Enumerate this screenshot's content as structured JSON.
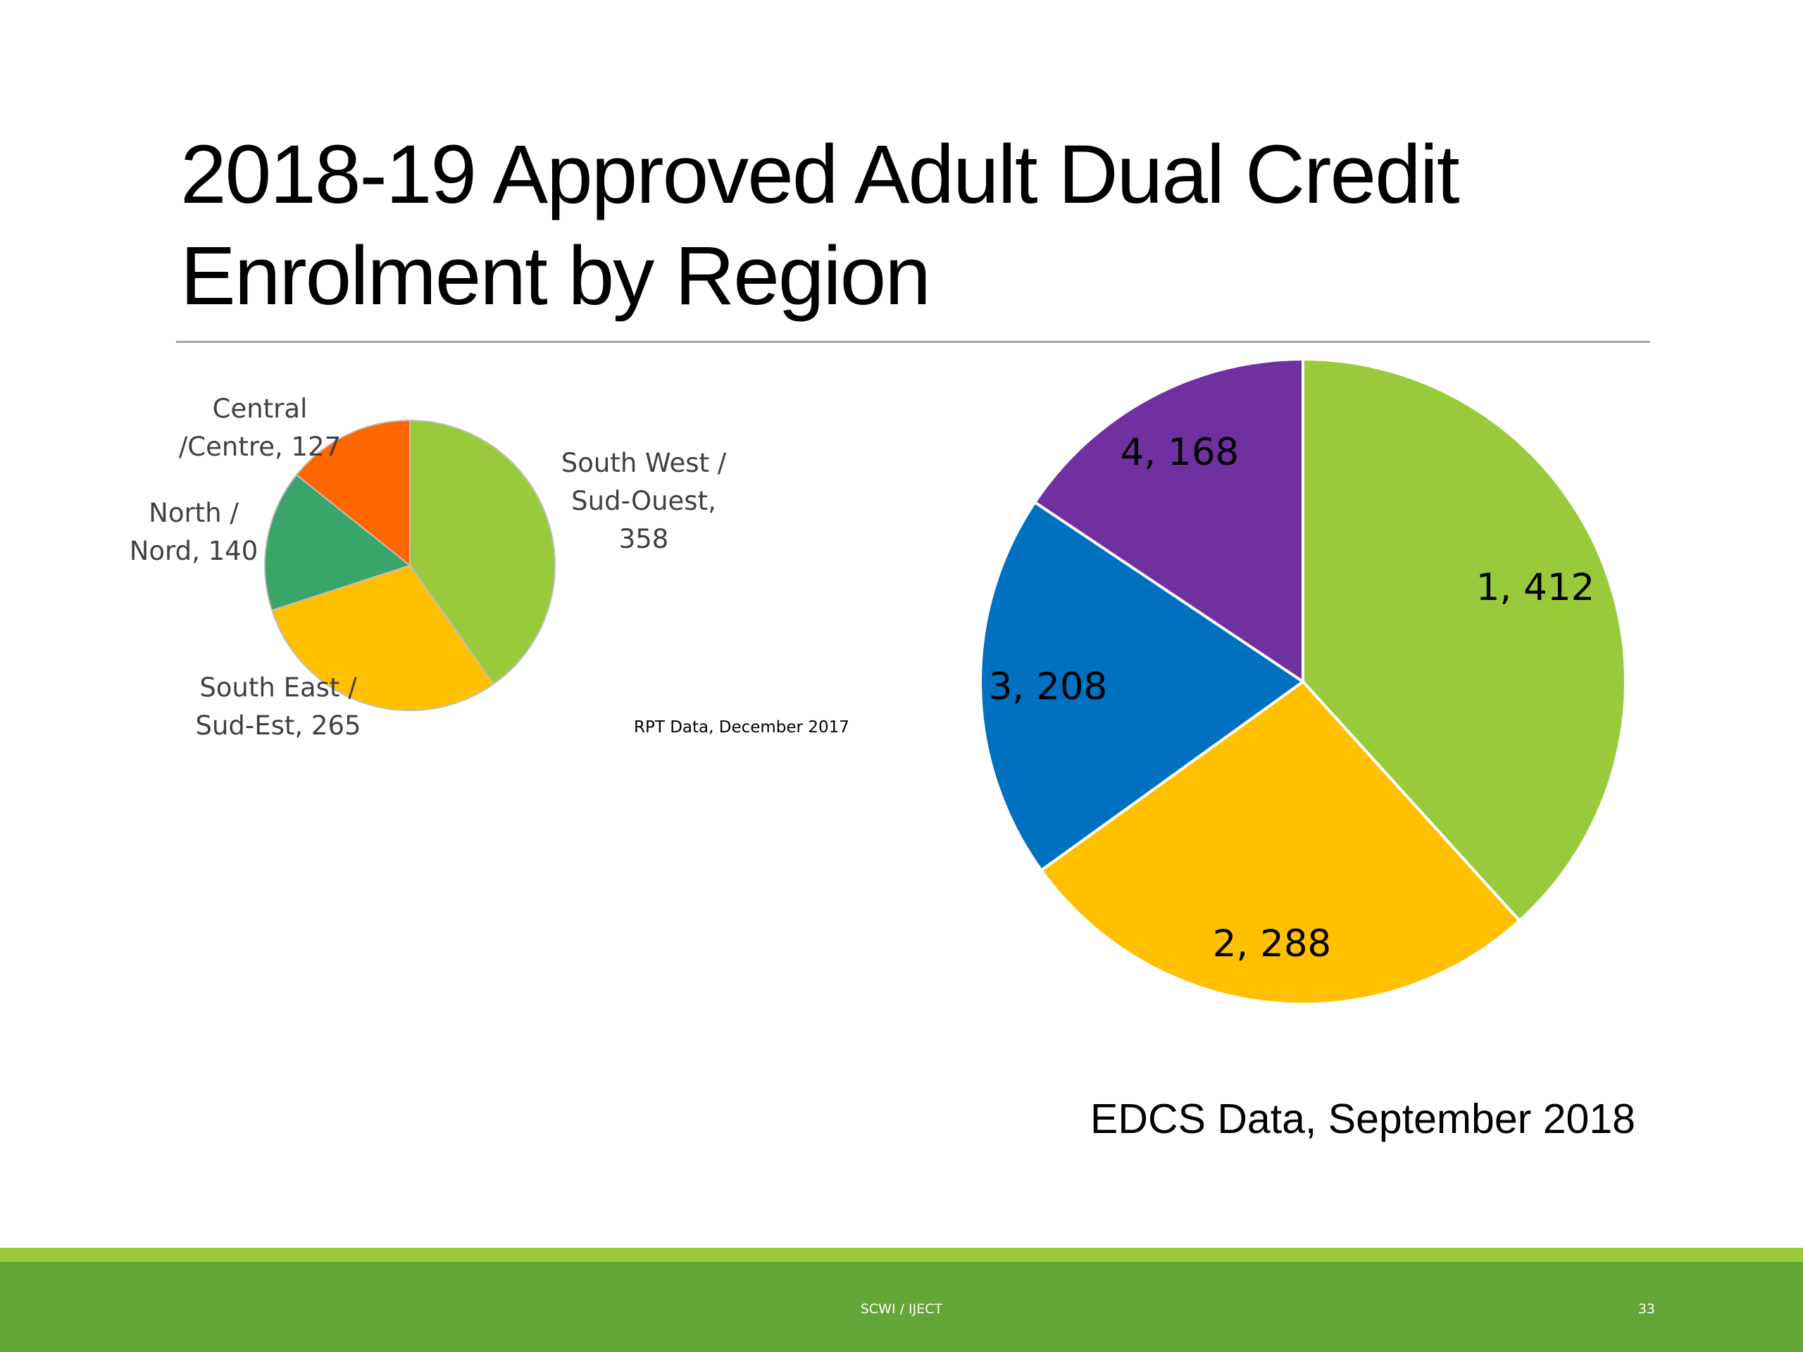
{
  "slide": {
    "title": "2018-19 Approved Adult Dual Credit Enrolment by Region",
    "footer_text": "SCWI / IJECT",
    "page_number": "33",
    "footer_colors": {
      "accent_line": "#99cb38",
      "bar": "#63a537"
    }
  },
  "chart_data": [
    {
      "type": "pie",
      "source": "RPT Data, December 2017",
      "series": [
        {
          "label": "South West / Sud-Ouest, 358",
          "value": 358,
          "color": "#99ca3c"
        },
        {
          "label": "South East / Sud-Est, 265",
          "value": 265,
          "color": "#ffc000"
        },
        {
          "label": "North / Nord, 140",
          "value": 140,
          "color": "#3aa56b"
        },
        {
          "label": "Central /Centre, 127",
          "value": 127,
          "color": "#ff6600"
        }
      ]
    },
    {
      "type": "pie",
      "source": "EDCS Data, September 2018",
      "series": [
        {
          "label": "1, 412",
          "value": 412,
          "color": "#99ca3c"
        },
        {
          "label": "2, 288",
          "value": 288,
          "color": "#ffc000"
        },
        {
          "label": "3, 208",
          "value": 208,
          "color": "#0070c0"
        },
        {
          "label": "4, 168",
          "value": 168,
          "color": "#7030a0"
        }
      ]
    }
  ]
}
